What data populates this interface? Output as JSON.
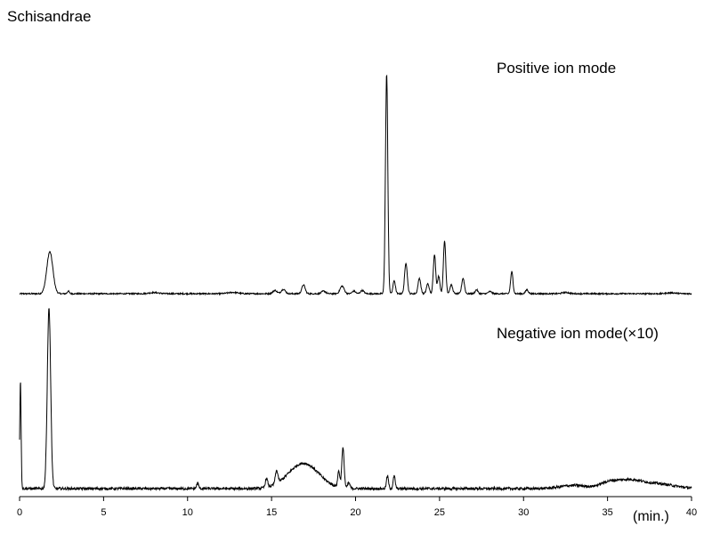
{
  "chart_data": {
    "type": "line",
    "title": "Schisandrae",
    "xunit": "(min.)",
    "xlim": [
      0,
      40
    ],
    "xticks": [
      0,
      5,
      10,
      15,
      20,
      25,
      30,
      35,
      40
    ],
    "grid": false,
    "panels": [
      {
        "name": "Positive ion mode",
        "peaks": [
          [
            1.8,
            0.19,
            0.18
          ],
          [
            2.9,
            0.012,
            0.06
          ],
          [
            8.0,
            0.005,
            0.3
          ],
          [
            12.7,
            0.006,
            0.3
          ],
          [
            15.2,
            0.015,
            0.12
          ],
          [
            15.7,
            0.02,
            0.12
          ],
          [
            16.9,
            0.04,
            0.1
          ],
          [
            18.1,
            0.012,
            0.12
          ],
          [
            19.2,
            0.035,
            0.12
          ],
          [
            19.9,
            0.012,
            0.1
          ],
          [
            20.4,
            0.015,
            0.1
          ],
          [
            21.85,
            1.0,
            0.07
          ],
          [
            22.3,
            0.06,
            0.07
          ],
          [
            23.0,
            0.14,
            0.08
          ],
          [
            23.8,
            0.07,
            0.08
          ],
          [
            24.3,
            0.045,
            0.08
          ],
          [
            24.7,
            0.18,
            0.07
          ],
          [
            24.95,
            0.08,
            0.07
          ],
          [
            25.3,
            0.24,
            0.07
          ],
          [
            25.7,
            0.04,
            0.08
          ],
          [
            26.4,
            0.07,
            0.08
          ],
          [
            27.2,
            0.018,
            0.08
          ],
          [
            28.0,
            0.01,
            0.1
          ],
          [
            29.3,
            0.1,
            0.07
          ],
          [
            30.2,
            0.018,
            0.08
          ],
          [
            32.5,
            0.006,
            0.2
          ],
          [
            38.8,
            0.004,
            0.3
          ]
        ],
        "noise": 0.003
      },
      {
        "name": "Negative ion mode(×10)",
        "peaks": [
          [
            0.05,
            0.6,
            0.04
          ],
          [
            1.75,
            1.0,
            0.1
          ],
          [
            10.6,
            0.03,
            0.06
          ],
          [
            14.7,
            0.05,
            0.07
          ],
          [
            15.3,
            0.07,
            0.08
          ],
          [
            16.9,
            0.14,
            0.9
          ],
          [
            19.0,
            0.09,
            0.06
          ],
          [
            19.25,
            0.22,
            0.07
          ],
          [
            19.6,
            0.03,
            0.07
          ],
          [
            21.9,
            0.07,
            0.06
          ],
          [
            22.3,
            0.07,
            0.06
          ],
          [
            33.0,
            0.018,
            0.8
          ],
          [
            35.0,
            0.025,
            0.5
          ],
          [
            36.2,
            0.045,
            0.8
          ],
          [
            38.0,
            0.025,
            1.0
          ]
        ],
        "noise": 0.007
      }
    ]
  }
}
